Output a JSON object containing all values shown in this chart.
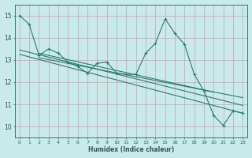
{
  "xlabel": "Humidex (Indice chaleur)",
  "background_color": "#c8eaea",
  "grid_color": "#b0d0d0",
  "line_color": "#2e7b6e",
  "xlim": [
    -0.5,
    23.5
  ],
  "ylim": [
    9.5,
    15.5
  ],
  "xticks": [
    0,
    1,
    2,
    3,
    4,
    5,
    6,
    7,
    8,
    9,
    10,
    11,
    12,
    13,
    14,
    15,
    16,
    17,
    18,
    19,
    20,
    21,
    22,
    23
  ],
  "yticks": [
    10,
    11,
    12,
    13,
    14,
    15
  ],
  "data_x": [
    0,
    1,
    2,
    3,
    4,
    5,
    6,
    7,
    8,
    9,
    10,
    11,
    12,
    13,
    14,
    15,
    16,
    17,
    18,
    19,
    20,
    21,
    22,
    23
  ],
  "data_y": [
    15.0,
    14.6,
    13.2,
    13.5,
    13.3,
    12.9,
    12.7,
    12.4,
    12.85,
    12.9,
    12.4,
    12.35,
    12.35,
    13.3,
    13.75,
    14.85,
    14.2,
    13.7,
    12.35,
    11.6,
    10.5,
    10.05,
    10.7,
    10.6
  ],
  "reg_lines": [
    {
      "x": [
        0,
        23
      ],
      "y": [
        13.25,
        10.6
      ]
    },
    {
      "x": [
        0,
        23
      ],
      "y": [
        13.45,
        10.95
      ]
    },
    {
      "x": [
        2,
        20
      ],
      "y": [
        13.3,
        11.55
      ]
    },
    {
      "x": [
        2,
        23
      ],
      "y": [
        13.1,
        11.3
      ]
    }
  ]
}
